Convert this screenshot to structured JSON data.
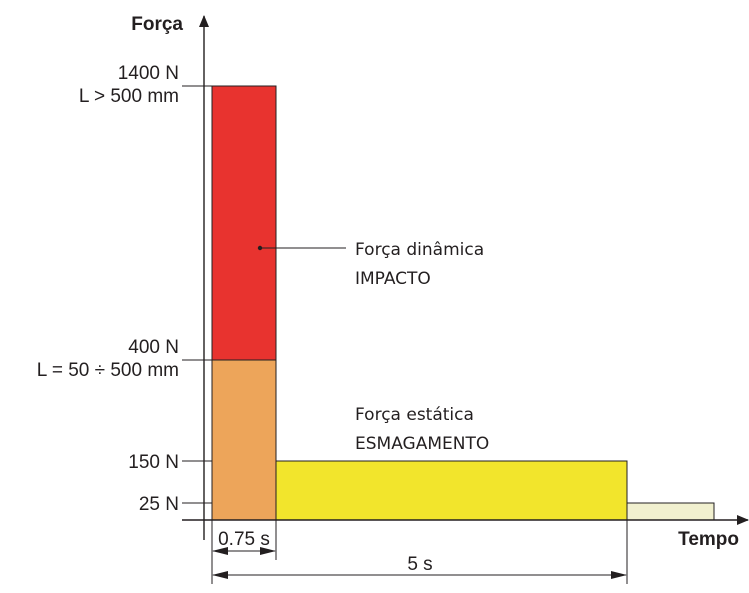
{
  "axes": {
    "y_title": "Força",
    "x_title": "Tempo"
  },
  "levels": {
    "max_force": "1400 N",
    "max_condition": "L > 500 mm",
    "mid_force": "400 N",
    "mid_condition": "L = 50 ÷ 500 mm",
    "static_force": "150 N",
    "residual_force": "25 N"
  },
  "times": {
    "dynamic_duration": "0.75 s",
    "static_duration": "5 s"
  },
  "annotations": {
    "dynamic_line1": "Força dinâmica",
    "dynamic_line2": "IMPACTO",
    "static_line1": "Força estática",
    "static_line2": "ESMAGAMENTO"
  },
  "colors": {
    "dynamic_high": "#e8332f",
    "dynamic_low": "#eda55a",
    "static": "#f2e52c",
    "residual": "#f1f0cf",
    "line": "#231f20"
  }
}
